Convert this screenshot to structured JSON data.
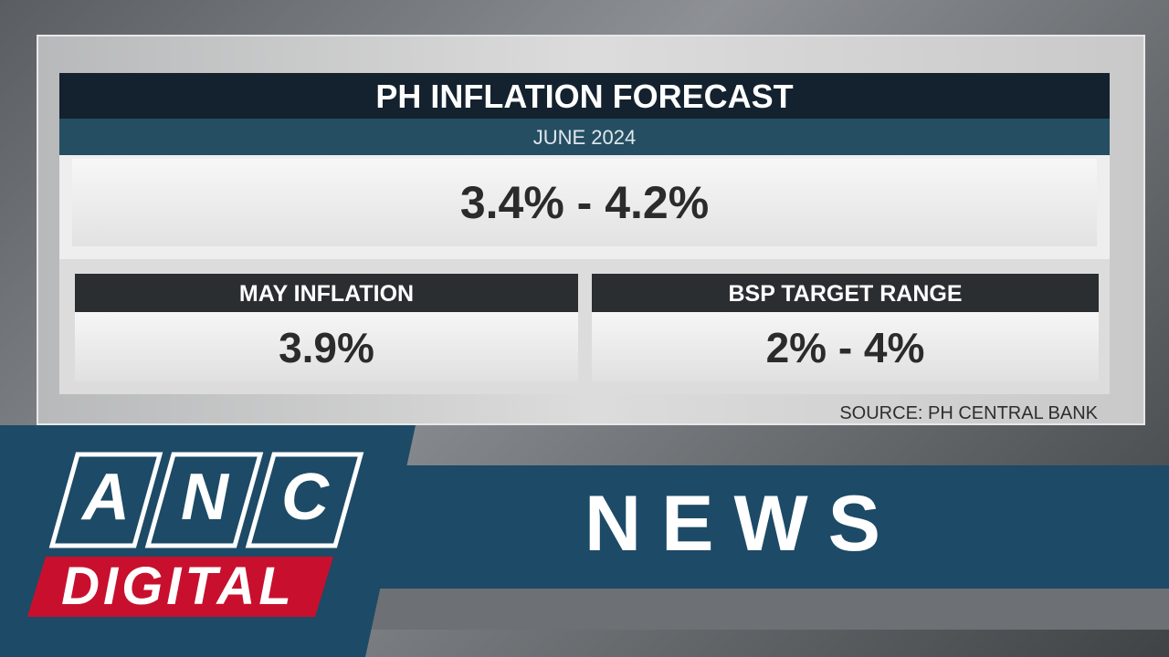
{
  "header": {
    "title": "PH INFLATION FORECAST",
    "subtitle": "JUNE 2024"
  },
  "forecast": {
    "value": "3.4% - 4.2%"
  },
  "cards": [
    {
      "label": "MAY INFLATION",
      "value": "3.9%"
    },
    {
      "label": "BSP TARGET RANGE",
      "value": "2% - 4%"
    }
  ],
  "source": "SOURCE: PH CENTRAL BANK",
  "brand": {
    "letters": [
      "A",
      "N",
      "C"
    ],
    "sub": "DIGITAL",
    "section": "NEWS"
  }
}
